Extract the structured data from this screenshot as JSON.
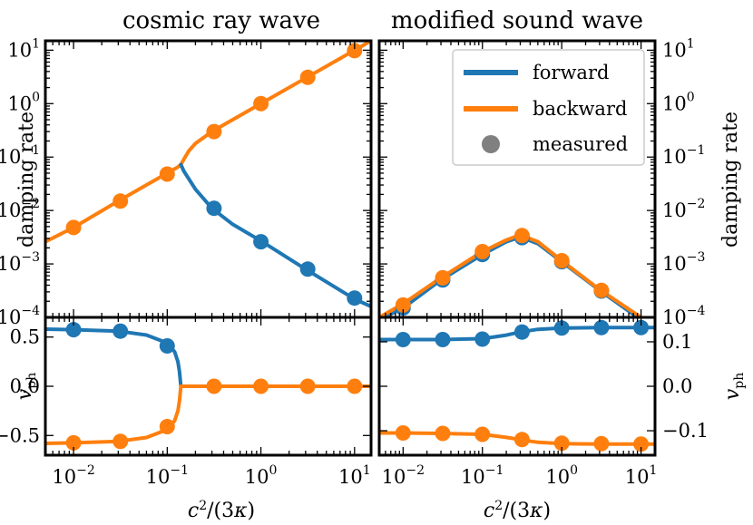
{
  "figure": {
    "titles": {
      "left": "cosmic ray wave",
      "right": "modified sound wave"
    },
    "xlabel": "c²/(3κ)",
    "ylabel_top": "damping rate",
    "ylabel_bottom": "v_ph"
  },
  "colors": {
    "forward": "#1f77b4",
    "backward": "#ff7f0e",
    "measured": "#808080"
  },
  "chart_data": [
    {
      "id": "cr_damping",
      "type": "line",
      "panel": "top-left",
      "title": "cosmic ray wave",
      "ylabel": "damping rate",
      "xscale": "log",
      "yscale": "log",
      "xlim": [
        0.005,
        15
      ],
      "ylim": [
        0.0001,
        15
      ],
      "xticks": [
        {
          "v": 0.01,
          "b": "10",
          "e": "−2"
        },
        {
          "v": 0.1,
          "b": "10",
          "e": "−1"
        },
        {
          "v": 1,
          "b": "10",
          "e": "0"
        },
        {
          "v": 10,
          "b": "10",
          "e": "1"
        }
      ],
      "yticks": [
        {
          "v": 0.0001,
          "b": "10",
          "e": "−4"
        },
        {
          "v": 0.001,
          "b": "10",
          "e": "−3"
        },
        {
          "v": 0.01,
          "b": "10",
          "e": "−2"
        },
        {
          "v": 0.1,
          "b": "10",
          "e": "−1"
        },
        {
          "v": 1,
          "b": "10",
          "e": "0"
        },
        {
          "v": 10,
          "b": "10",
          "e": "1"
        }
      ],
      "series": [
        {
          "name": "backward",
          "kind": "line",
          "color": "backward",
          "x": [
            0.005,
            0.01,
            0.03,
            0.06,
            0.1,
            0.13,
            0.14,
            0.15,
            0.17,
            0.2,
            0.3,
            0.5,
            1,
            3,
            10,
            15
          ],
          "y": [
            0.0026,
            0.0048,
            0.015,
            0.03,
            0.05,
            0.065,
            0.072,
            0.09,
            0.13,
            0.18,
            0.3,
            0.5,
            1.0,
            3.0,
            10.0,
            15.0
          ]
        },
        {
          "name": "forward",
          "kind": "line",
          "color": "forward",
          "x": [
            0.14,
            0.15,
            0.2,
            0.3,
            0.5,
            1,
            3,
            10,
            15
          ],
          "y": [
            0.072,
            0.055,
            0.025,
            0.011,
            0.0055,
            0.0027,
            0.0008,
            0.00022,
            0.00016
          ]
        },
        {
          "name": "measured backward",
          "kind": "points",
          "color": "backward",
          "x": [
            0.01,
            0.0316,
            0.1,
            0.316,
            1,
            3.16,
            10
          ],
          "y": [
            0.0048,
            0.015,
            0.048,
            0.3,
            1.0,
            3.1,
            9.8
          ]
        },
        {
          "name": "measured forward",
          "kind": "points",
          "color": "forward",
          "x": [
            0.316,
            1,
            3.16,
            10
          ],
          "y": [
            0.011,
            0.0026,
            0.0008,
            0.00023
          ]
        }
      ]
    },
    {
      "id": "ms_damping",
      "type": "line",
      "panel": "top-right",
      "title": "modified sound wave",
      "ylabel": "damping rate",
      "xscale": "log",
      "yscale": "log",
      "xlim": [
        0.005,
        15
      ],
      "ylim": [
        0.0001,
        15
      ],
      "xticks": [
        {
          "v": 0.01,
          "b": "10",
          "e": "−2"
        },
        {
          "v": 0.1,
          "b": "10",
          "e": "−1"
        },
        {
          "v": 1,
          "b": "10",
          "e": "0"
        },
        {
          "v": 10,
          "b": "10",
          "e": "1"
        }
      ],
      "yticks": [
        {
          "v": 0.0001,
          "b": "10",
          "e": "−4"
        },
        {
          "v": 0.001,
          "b": "10",
          "e": "−3"
        },
        {
          "v": 0.01,
          "b": "10",
          "e": "−2"
        },
        {
          "v": 0.1,
          "b": "10",
          "e": "−1"
        },
        {
          "v": 1,
          "b": "10",
          "e": "0"
        },
        {
          "v": 10,
          "b": "10",
          "e": "1"
        }
      ],
      "legend": {
        "position": "top-right",
        "entries": [
          {
            "label": "forward",
            "kind": "line",
            "color": "forward"
          },
          {
            "label": "backward",
            "kind": "line",
            "color": "backward"
          },
          {
            "label": "measured",
            "kind": "point",
            "color": "measured"
          }
        ]
      },
      "series": [
        {
          "name": "forward",
          "kind": "line",
          "color": "forward",
          "x": [
            0.005,
            0.01,
            0.03,
            0.1,
            0.2,
            0.3,
            0.5,
            1,
            3,
            10,
            15
          ],
          "y": [
            9e-05,
            0.00015,
            0.0005,
            0.0015,
            0.0026,
            0.0032,
            0.0024,
            0.0011,
            0.00032,
            9e-05,
            7e-05
          ]
        },
        {
          "name": "backward",
          "kind": "line",
          "color": "backward",
          "x": [
            0.005,
            0.01,
            0.03,
            0.1,
            0.2,
            0.3,
            0.5,
            1,
            3,
            10,
            15
          ],
          "y": [
            0.0001,
            0.00018,
            0.00055,
            0.0017,
            0.0028,
            0.0035,
            0.0026,
            0.00115,
            0.00033,
            0.0001,
            7e-05
          ]
        },
        {
          "name": "measured forward",
          "kind": "points",
          "color": "forward",
          "x": [
            0.01,
            0.0316,
            0.1,
            0.316,
            1,
            3.16
          ],
          "y": [
            0.00015,
            0.0005,
            0.0015,
            0.0031,
            0.0011,
            0.00031
          ]
        },
        {
          "name": "measured backward",
          "kind": "points",
          "color": "backward",
          "x": [
            0.01,
            0.0316,
            0.1,
            0.316,
            1,
            3.16
          ],
          "y": [
            0.00017,
            0.00055,
            0.0017,
            0.0034,
            0.00115,
            0.00032
          ]
        }
      ]
    },
    {
      "id": "cr_vph",
      "type": "line",
      "panel": "bottom-left",
      "ylabel": "v_ph",
      "xlabel": "c²/(3κ)",
      "xscale": "log",
      "yscale": "linear",
      "xlim": [
        0.005,
        15
      ],
      "ylim": [
        -0.7,
        0.7
      ],
      "xticks": [
        {
          "v": 0.01,
          "b": "10",
          "e": "−2"
        },
        {
          "v": 0.1,
          "b": "10",
          "e": "−1"
        },
        {
          "v": 1,
          "b": "10",
          "e": "0"
        },
        {
          "v": 10,
          "b": "10",
          "e": "1"
        }
      ],
      "yticks": [
        {
          "v": -0.5,
          "label": "−0.5"
        },
        {
          "v": 0,
          "label": "0.0"
        },
        {
          "v": 0.5,
          "label": "0.5"
        }
      ],
      "series": [
        {
          "name": "forward",
          "kind": "line",
          "color": "forward",
          "x": [
            0.005,
            0.01,
            0.03,
            0.06,
            0.1,
            0.12,
            0.13,
            0.135,
            0.14
          ],
          "y": [
            0.58,
            0.575,
            0.56,
            0.52,
            0.44,
            0.35,
            0.25,
            0.15,
            0.0
          ]
        },
        {
          "name": "backward",
          "kind": "line",
          "color": "backward",
          "x": [
            0.005,
            0.01,
            0.03,
            0.06,
            0.1,
            0.12,
            0.13,
            0.135,
            0.14,
            0.3,
            1,
            3,
            10,
            15
          ],
          "y": [
            -0.58,
            -0.575,
            -0.56,
            -0.52,
            -0.44,
            -0.35,
            -0.25,
            -0.15,
            0.0,
            0.0,
            0.0,
            0.0,
            0.0,
            0.0
          ]
        },
        {
          "name": "measured forward",
          "kind": "points",
          "color": "forward",
          "x": [
            0.01,
            0.0316,
            0.1
          ],
          "y": [
            0.575,
            0.56,
            0.41
          ]
        },
        {
          "name": "measured backward",
          "kind": "points",
          "color": "backward",
          "x": [
            0.01,
            0.0316,
            0.1,
            0.316,
            1,
            3.16,
            10
          ],
          "y": [
            -0.575,
            -0.56,
            -0.41,
            0.0,
            0.0,
            0.0,
            0.0
          ]
        }
      ]
    },
    {
      "id": "ms_vph",
      "type": "line",
      "panel": "bottom-right",
      "ylabel": "v_ph",
      "xlabel": "c²/(3κ)",
      "xscale": "log",
      "yscale": "linear",
      "xlim": [
        0.005,
        15
      ],
      "ylim": [
        -0.155,
        0.155
      ],
      "xticks": [
        {
          "v": 0.01,
          "b": "10",
          "e": "−2"
        },
        {
          "v": 0.1,
          "b": "10",
          "e": "−1"
        },
        {
          "v": 1,
          "b": "10",
          "e": "0"
        },
        {
          "v": 10,
          "b": "10",
          "e": "1"
        }
      ],
      "yticks": [
        {
          "v": -0.1,
          "label": "−0.1"
        },
        {
          "v": 0,
          "label": "0.0"
        },
        {
          "v": 0.1,
          "label": "0.1"
        }
      ],
      "series": [
        {
          "name": "forward",
          "kind": "line",
          "color": "forward",
          "x": [
            0.005,
            0.01,
            0.03,
            0.1,
            0.2,
            0.3,
            0.5,
            1,
            3,
            10,
            15
          ],
          "y": [
            0.105,
            0.105,
            0.105,
            0.107,
            0.115,
            0.122,
            0.128,
            0.131,
            0.132,
            0.132,
            0.132
          ]
        },
        {
          "name": "backward",
          "kind": "line",
          "color": "backward",
          "x": [
            0.005,
            0.01,
            0.03,
            0.1,
            0.2,
            0.3,
            0.5,
            1,
            3,
            10,
            15
          ],
          "y": [
            -0.105,
            -0.105,
            -0.106,
            -0.108,
            -0.115,
            -0.12,
            -0.126,
            -0.129,
            -0.13,
            -0.13,
            -0.13
          ]
        },
        {
          "name": "measured forward",
          "kind": "points",
          "color": "forward",
          "x": [
            0.01,
            0.0316,
            0.1,
            0.316,
            1,
            3.16,
            10
          ],
          "y": [
            0.105,
            0.105,
            0.106,
            0.122,
            0.131,
            0.132,
            0.132
          ]
        },
        {
          "name": "measured backward",
          "kind": "points",
          "color": "backward",
          "x": [
            0.01,
            0.0316,
            0.1,
            0.316,
            1,
            3.16,
            10
          ],
          "y": [
            -0.105,
            -0.106,
            -0.108,
            -0.12,
            -0.128,
            -0.129,
            -0.13
          ]
        }
      ]
    }
  ]
}
